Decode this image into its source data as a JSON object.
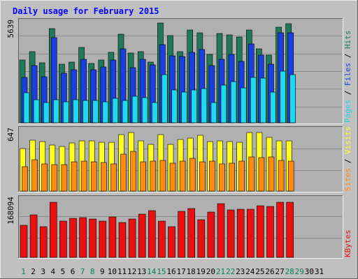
{
  "chart_data": {
    "type": "bar",
    "title": "Daily usage for February 2015",
    "categories": [
      "1",
      "2",
      "3",
      "4",
      "5",
      "6",
      "7",
      "8",
      "9",
      "10",
      "11",
      "12",
      "13",
      "14",
      "15",
      "16",
      "17",
      "18",
      "19",
      "20",
      "21",
      "22",
      "23",
      "24",
      "25",
      "26",
      "27",
      "28",
      "29",
      "30",
      "31"
    ],
    "weekend_days": [
      "1",
      "7",
      "8",
      "14",
      "15",
      "21",
      "22",
      "28",
      "29"
    ],
    "colors": {
      "title": "#0000ff",
      "bg": "#c0c0c0",
      "plot_bg": "#b0b0b0",
      "hits": "#207a5a",
      "files": "#1a3fe0",
      "pages": "#20d8f0",
      "visits": "#ffff20",
      "sites": "#ff8c10",
      "kbytes": "#e81010",
      "weekday_label": "#000000",
      "weekend_label": "#00805a"
    },
    "panels": [
      {
        "name": "hits-files-pages",
        "max_label": "5639",
        "ymax": 5639,
        "legend": [
          {
            "text": "Hits",
            "color": "#207a5a"
          },
          {
            "text": "Files",
            "color": "#1a3fe0"
          },
          {
            "text": "Pages",
            "color": "#20d8f0"
          }
        ],
        "series": [
          {
            "name": "Hits",
            "values": [
              3540,
              3975,
              3350,
              5280,
              3300,
              3400,
              4220,
              3310,
              3535,
              3970,
              4960,
              3930,
              3990,
              3400,
              5600,
              4880,
              4000,
              5220,
              5070,
              3830,
              5030,
              4930,
              4820,
              5210,
              4160,
              3800,
              5380,
              5580
            ]
          },
          {
            "name": "Files",
            "values": [
              2560,
              3210,
              2590,
              4760,
              2780,
              2990,
              3550,
              2970,
              3140,
              3520,
              4170,
              3080,
              3570,
              3240,
              4400,
              3750,
              3720,
              3960,
              4100,
              3200,
              3570,
              3850,
              3450,
              4440,
              3800,
              3290,
              5040,
              5070
            ]
          },
          {
            "name": "Pages",
            "values": [
              1680,
              1300,
              1150,
              1290,
              1160,
              1300,
              1270,
              1270,
              1160,
              1360,
              1270,
              1470,
              1420,
              1150,
              2710,
              1850,
              1720,
              1840,
              1930,
              1120,
              2130,
              2330,
              1950,
              2540,
              2510,
              1740,
              2900,
              2690
            ]
          }
        ]
      },
      {
        "name": "visits-sites",
        "max_label": "647",
        "ymax": 647,
        "legend": [
          {
            "text": "Visits",
            "color": "#ffff20"
          },
          {
            "text": "Sites",
            "color": "#ff8c10"
          }
        ],
        "series": [
          {
            "name": "Visits",
            "values": [
              450,
              546,
              525,
              488,
              478,
              510,
              536,
              534,
              522,
              520,
              603,
              624,
              532,
              495,
              606,
              498,
              550,
              565,
              595,
              530,
              532,
              530,
              520,
              626,
              626,
              570,
              533,
              533
            ]
          },
          {
            "name": "Sites",
            "values": [
              264,
              335,
              290,
              285,
              281,
              315,
              319,
              316,
              304,
              287,
              392,
              427,
              316,
              320,
              330,
              300,
              318,
              348,
              314,
              319,
              287,
              295,
              319,
              361,
              355,
              366,
              327,
              323
            ]
          }
        ]
      },
      {
        "name": "kbytes",
        "max_label": "168094",
        "ymax": 168094,
        "legend": [
          {
            "text": "KBytes",
            "color": "#e81010"
          }
        ],
        "series": [
          {
            "name": "KBytes",
            "values": [
              94000,
              123000,
              90000,
              160000,
              105000,
              114000,
              115000,
              112000,
              106000,
              117000,
              101000,
              111000,
              126000,
              136000,
              106000,
              90000,
              134000,
              141000,
              110000,
              131000,
              156000,
              137000,
              140000,
              140000,
              150000,
              148000,
              159000,
              161000
            ]
          }
        ]
      }
    ]
  }
}
